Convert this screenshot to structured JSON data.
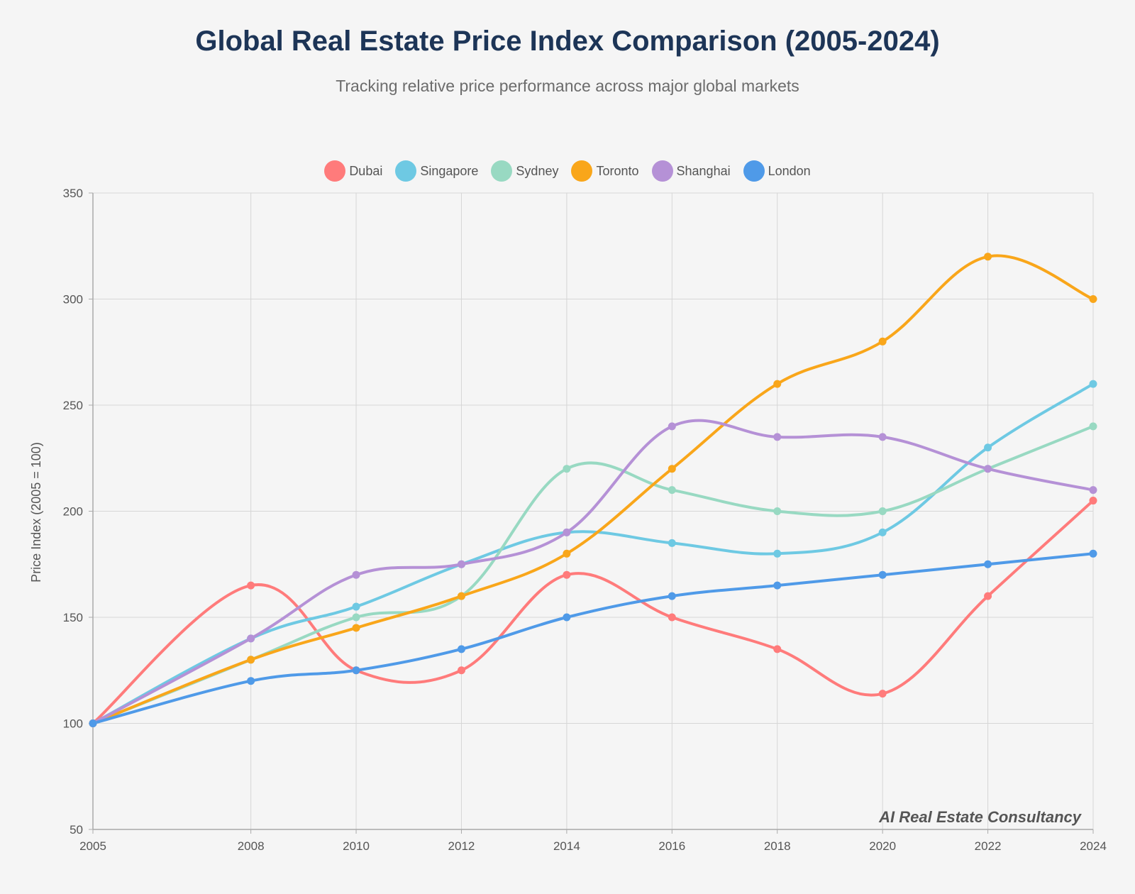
{
  "header": {
    "title": "Global Real Estate Price Index Comparison (2005-2024)",
    "subtitle": "Tracking relative price performance across major global markets"
  },
  "watermark": "AI Real Estate Consultancy",
  "chart_data": {
    "type": "line",
    "title": "Global Real Estate Price Index Comparison (2005-2024)",
    "subtitle": "Tracking relative price performance across major global markets",
    "xlabel": "",
    "ylabel": "Price Index (2005 = 100)",
    "x": [
      2005,
      2008,
      2010,
      2012,
      2014,
      2016,
      2018,
      2020,
      2022,
      2024
    ],
    "x_tick_labels": [
      "2005",
      "2008",
      "2010",
      "2012",
      "2014",
      "2016",
      "2018",
      "2020",
      "2022",
      "2024"
    ],
    "ylim": [
      50,
      350
    ],
    "y_ticks": [
      50,
      100,
      150,
      200,
      250,
      300,
      350
    ],
    "grid": true,
    "legend_position": "top-center",
    "series": [
      {
        "name": "Dubai",
        "color": "#ff7b7b",
        "values": [
          100,
          165,
          125,
          125,
          170,
          150,
          135,
          114,
          160,
          205
        ]
      },
      {
        "name": "Singapore",
        "color": "#6ec9e3",
        "values": [
          100,
          140,
          155,
          175,
          190,
          185,
          180,
          190,
          230,
          260
        ]
      },
      {
        "name": "Sydney",
        "color": "#98d9c2",
        "values": [
          100,
          130,
          150,
          160,
          220,
          210,
          200,
          200,
          220,
          240
        ]
      },
      {
        "name": "Toronto",
        "color": "#f9a61a",
        "values": [
          100,
          130,
          145,
          160,
          180,
          220,
          260,
          280,
          320,
          300
        ]
      },
      {
        "name": "Shanghai",
        "color": "#b591d6",
        "values": [
          100,
          140,
          170,
          175,
          190,
          240,
          235,
          235,
          220,
          210
        ]
      },
      {
        "name": "London",
        "color": "#4f9ae8",
        "values": [
          100,
          120,
          125,
          135,
          150,
          160,
          165,
          170,
          175,
          180
        ]
      }
    ]
  }
}
